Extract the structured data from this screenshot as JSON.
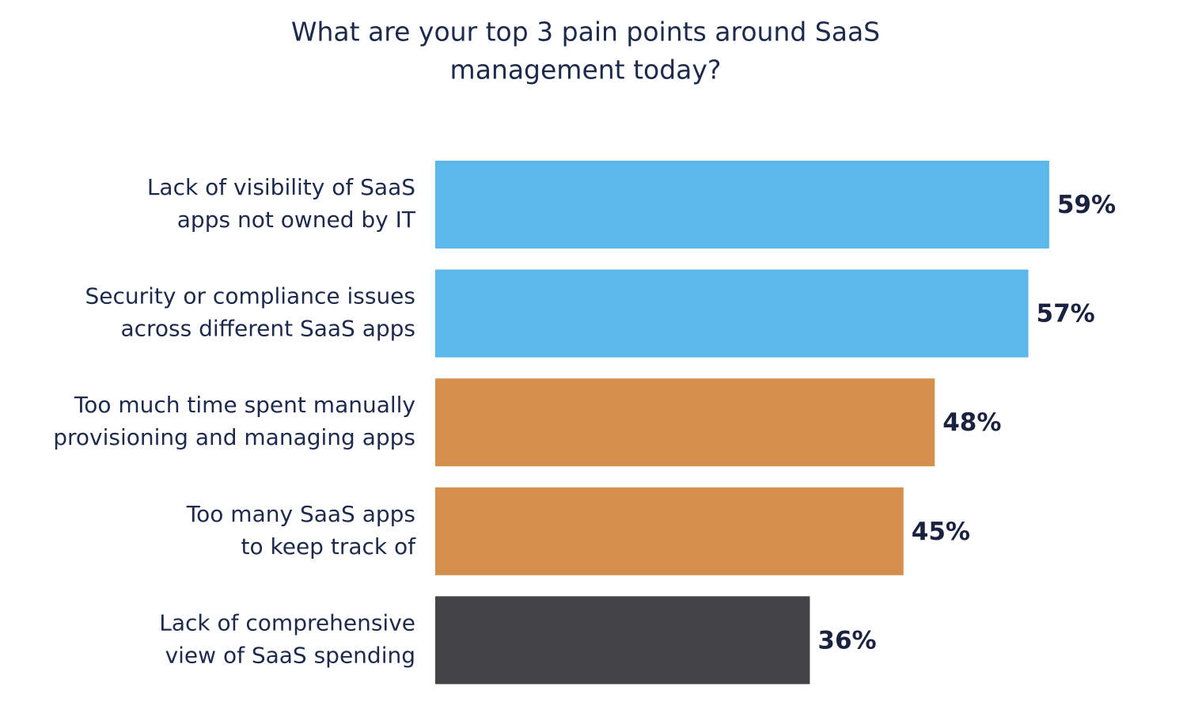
{
  "chart_data": {
    "type": "bar",
    "orientation": "horizontal",
    "title": [
      "What are your top 3 pain points around SaaS",
      "management today?"
    ],
    "categories": [
      [
        "Lack of visibility of SaaS",
        "apps not owned by IT"
      ],
      [
        "Security or compliance issues",
        "across different SaaS apps"
      ],
      [
        "Too much time spent manually",
        "provisioning and managing apps"
      ],
      [
        "Too many SaaS apps",
        "to keep track of"
      ],
      [
        "Lack of comprehensive",
        "view of SaaS spending"
      ]
    ],
    "values": [
      59,
      57,
      48,
      45,
      36
    ],
    "value_labels": [
      "59%",
      "57%",
      "48%",
      "45%",
      "36%"
    ],
    "colors": [
      "#5bb8e9",
      "#5bb8e9",
      "#d48f4b",
      "#d48f4b",
      "#444446"
    ]
  }
}
